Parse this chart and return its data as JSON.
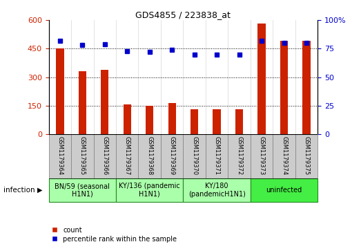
{
  "title": "GDS4855 / 223838_at",
  "samples": [
    "GSM1179364",
    "GSM1179365",
    "GSM1179366",
    "GSM1179367",
    "GSM1179368",
    "GSM1179369",
    "GSM1179370",
    "GSM1179371",
    "GSM1179372",
    "GSM1179373",
    "GSM1179374",
    "GSM1179375"
  ],
  "counts": [
    452,
    330,
    338,
    158,
    148,
    165,
    132,
    130,
    132,
    582,
    492,
    492
  ],
  "percentiles": [
    82,
    78,
    79,
    73,
    72,
    74,
    70,
    70,
    70,
    82,
    80,
    80
  ],
  "bar_color": "#cc2200",
  "dot_color": "#0000cc",
  "left_ylim": [
    0,
    600
  ],
  "right_ylim": [
    0,
    100
  ],
  "left_yticks": [
    0,
    150,
    300,
    450,
    600
  ],
  "right_yticks": [
    0,
    25,
    50,
    75,
    100
  ],
  "right_yticklabels": [
    "0",
    "25",
    "50",
    "75",
    "100%"
  ],
  "groups": [
    {
      "label": "BN/59 (seasonal\nH1N1)",
      "start": 0,
      "end": 3,
      "color": "#aaffaa"
    },
    {
      "label": "KY/136 (pandemic\nH1N1)",
      "start": 3,
      "end": 6,
      "color": "#aaffaa"
    },
    {
      "label": "KY/180\n(pandemicH1N1)",
      "start": 6,
      "end": 9,
      "color": "#aaffaa"
    },
    {
      "label": "uninfected",
      "start": 9,
      "end": 12,
      "color": "#44ee44"
    }
  ],
  "group_border_color": "#228822",
  "infection_label": "infection",
  "legend_count_label": "count",
  "legend_percentile_label": "percentile rank within the sample",
  "grid_color": "#000000",
  "sample_box_color": "#cccccc",
  "sample_box_edge": "#888888",
  "tick_label_color_left": "#cc2200",
  "tick_label_color_right": "#0000cc"
}
